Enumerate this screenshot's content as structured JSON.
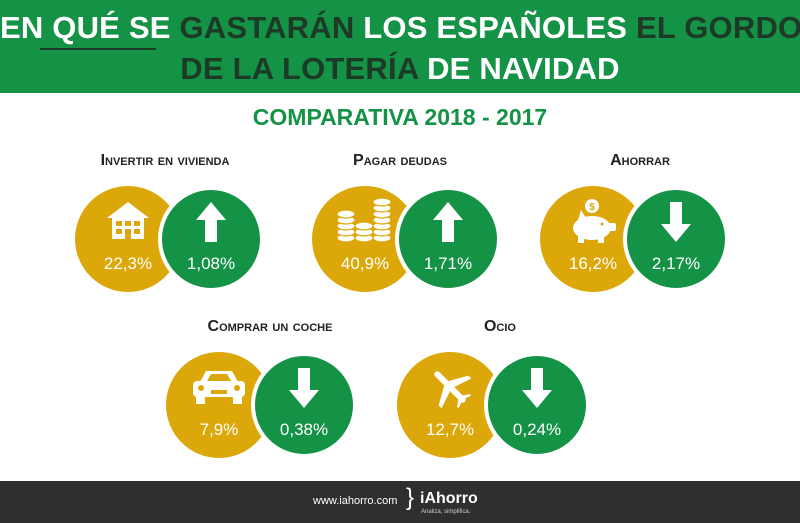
{
  "header": {
    "line1": {
      "part1": "EN QUÉ",
      "part2": "SE",
      "part3": "GASTARÁN",
      "part4": "LOS ESPAÑOLES",
      "part5": "EL GORDO"
    },
    "line2": {
      "part1": "DE LA LOTERÍA",
      "part2": "DE NAVIDAD"
    }
  },
  "subtitle": "COMPARATIVA  2018 - 2017",
  "categories": [
    {
      "label": "Invertir en vivienda",
      "percent": "22,3%",
      "change": "1,08%",
      "direction": "up",
      "icon": "house-icon"
    },
    {
      "label": "Pagar deudas",
      "percent": "40,9%",
      "change": "1,71%",
      "direction": "up",
      "icon": "coins-icon"
    },
    {
      "label": "Ahorrar",
      "percent": "16,2%",
      "change": "2,17%",
      "direction": "down",
      "icon": "piggy-bank-icon"
    },
    {
      "label": "Comprar un coche",
      "percent": "7,9%",
      "change": "0,38%",
      "direction": "down",
      "icon": "car-icon"
    },
    {
      "label": "Ocio",
      "percent": "12,7%",
      "change": "0,24%",
      "direction": "down",
      "icon": "airplane-icon"
    }
  ],
  "footer": {
    "url": "www.iahorro.com",
    "brand": "iAhorro",
    "tagline": "Analiza, simplifica."
  },
  "colors": {
    "green": "#149246",
    "gold": "#dba709",
    "dark": "#1d3a26",
    "footer": "#2f2f2f"
  }
}
